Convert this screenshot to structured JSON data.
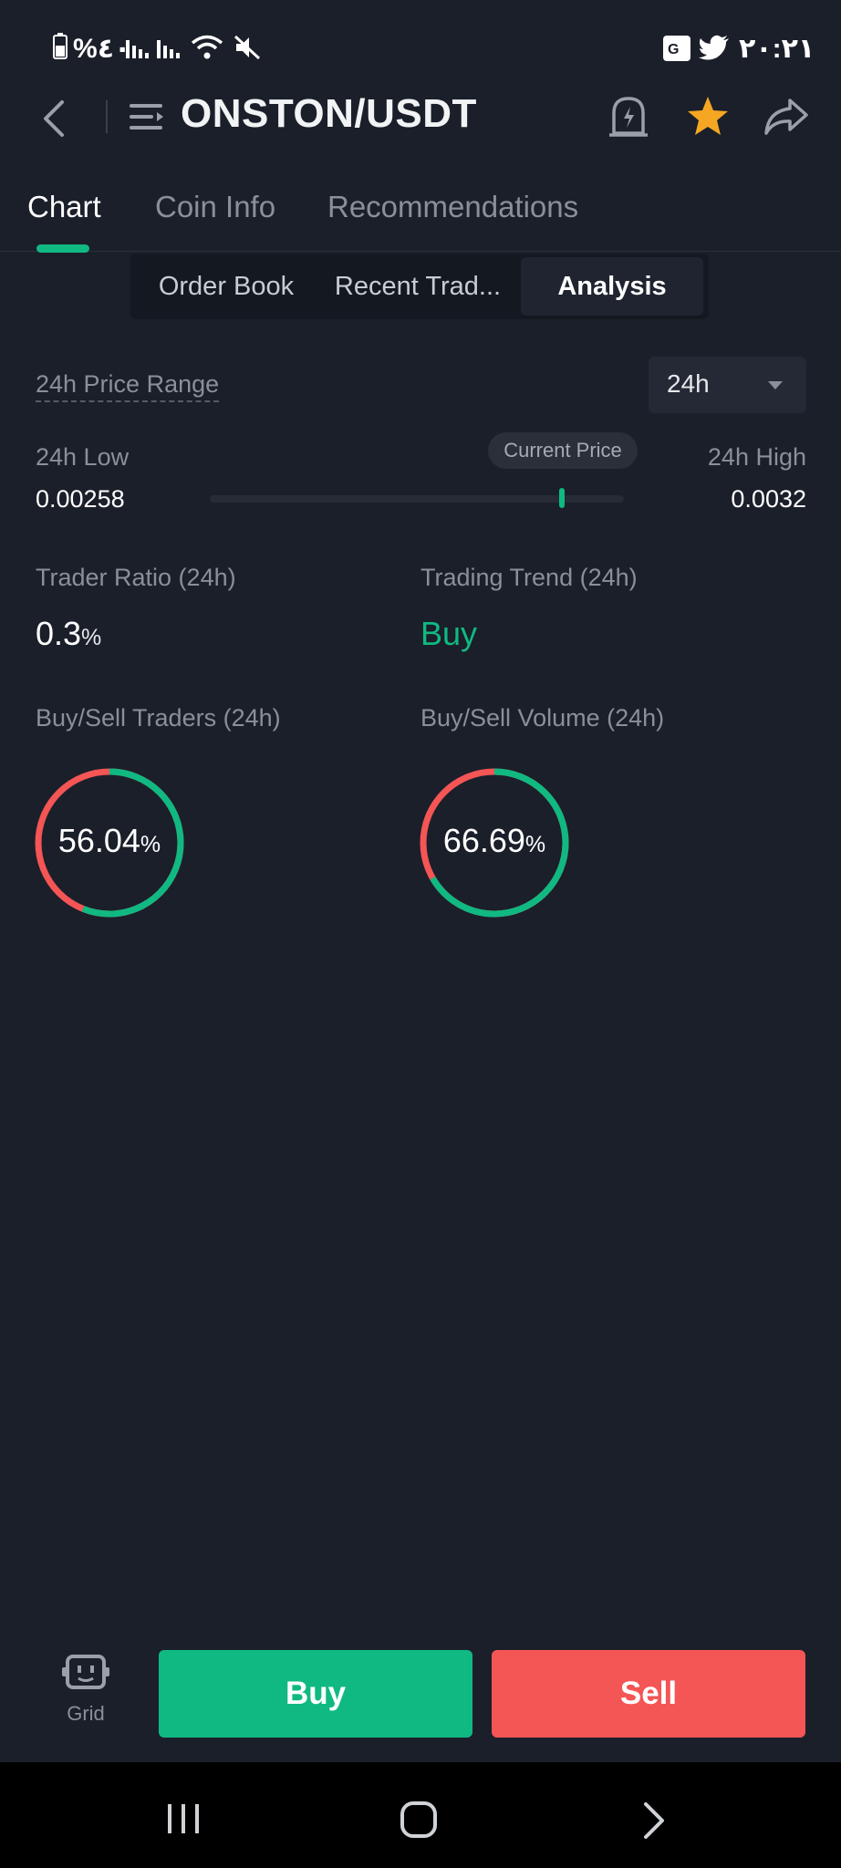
{
  "status_bar": {
    "left_text": "%٤٠",
    "time": "٢٠:٢١"
  },
  "header": {
    "title": "ONSTON/USDT"
  },
  "tabs": [
    {
      "label": "Chart"
    },
    {
      "label": "Coin Info"
    },
    {
      "label": "Recommendations"
    }
  ],
  "segments": [
    {
      "label": "Order Book"
    },
    {
      "label": "Recent Trad..."
    },
    {
      "label": "Analysis"
    }
  ],
  "price_range": {
    "title": "24h Price Range",
    "period_selected": "24h",
    "low_label": "24h Low",
    "low_value": "0.00258",
    "high_label": "24h High",
    "high_value": "0.0032",
    "current_label": "Current Price",
    "current_position_fraction": 0.85
  },
  "trader_ratio": {
    "label": "Trader Ratio (24h)",
    "value": "0.3",
    "unit": "%"
  },
  "trading_trend": {
    "label": "Trading Trend (24h)",
    "value": "Buy"
  },
  "buy_sell_traders": {
    "label": "Buy/Sell Traders (24h)",
    "value": "56.04",
    "unit": "%",
    "buy_fraction": 0.5604
  },
  "buy_sell_volume": {
    "label": "Buy/Sell Volume (24h)",
    "value": "66.69",
    "unit": "%",
    "buy_fraction": 0.6669
  },
  "bottom": {
    "grid_label": "Grid",
    "buy_label": "Buy",
    "sell_label": "Sell"
  },
  "colors": {
    "buy": "#10b981",
    "sell": "#f45555",
    "star": "#f5a623"
  },
  "icons": [
    "battery-icon",
    "signal-icon",
    "wifi-icon",
    "mute-icon",
    "translate-icon",
    "twitter-icon",
    "back-icon",
    "menu-icon",
    "alert-icon",
    "star-icon",
    "share-icon",
    "grid-bot-icon"
  ]
}
